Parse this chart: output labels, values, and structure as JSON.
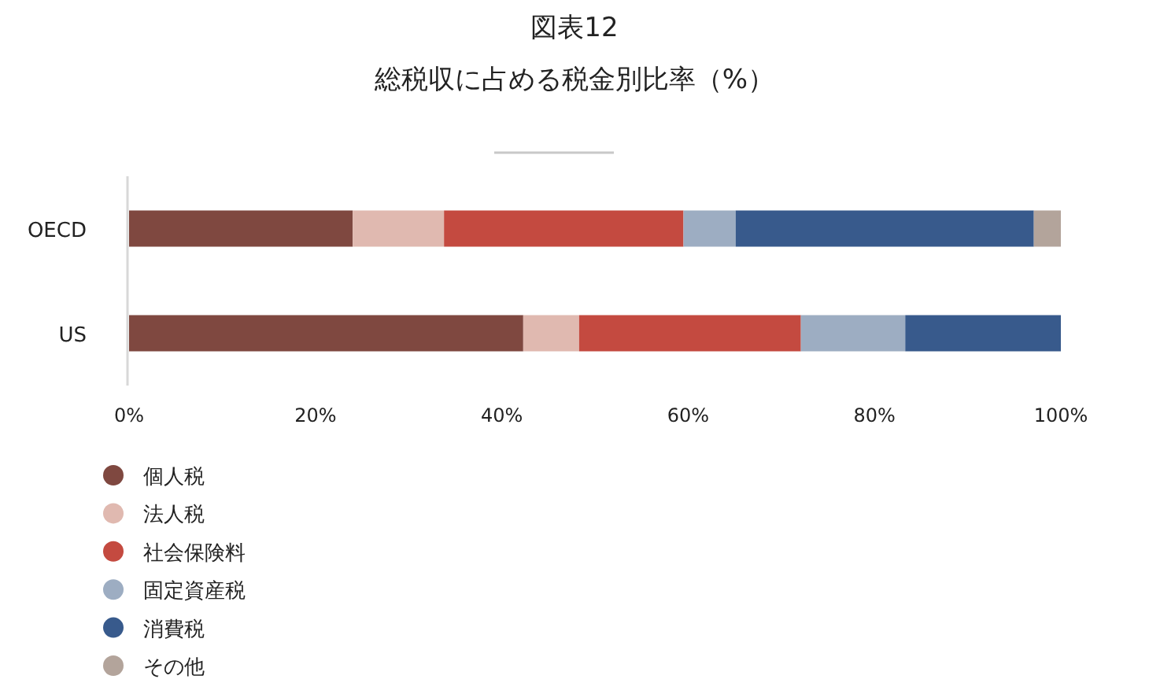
{
  "chart_data": {
    "type": "bar",
    "title": "図表12",
    "subtitle": "総税収に占める税金別比率（%）",
    "orientation": "horizontal",
    "stacked": true,
    "categories": [
      "OECD",
      "US"
    ],
    "series": [
      {
        "name": "個人税",
        "color": "#7f4840",
        "values": [
          24.0,
          42.3
        ]
      },
      {
        "name": "法人税",
        "color": "#e0b9b0",
        "values": [
          9.8,
          6.0
        ]
      },
      {
        "name": "社会保険料",
        "color": "#c44a40",
        "values": [
          25.7,
          23.8
        ]
      },
      {
        "name": "固定資産税",
        "color": "#9dadc2",
        "values": [
          5.6,
          11.2
        ]
      },
      {
        "name": "消費税",
        "color": "#385a8c",
        "values": [
          32.0,
          16.7
        ]
      },
      {
        "name": "その他",
        "color": "#b3a49b",
        "values": [
          2.9,
          0
        ]
      }
    ],
    "xlim": [
      0,
      100
    ],
    "xticks": [
      {
        "value": 0,
        "label": "0%"
      },
      {
        "value": 20,
        "label": "20%"
      },
      {
        "value": 40,
        "label": "40%"
      },
      {
        "value": 60,
        "label": "60%"
      },
      {
        "value": 80,
        "label": "80%"
      },
      {
        "value": 100,
        "label": "100%"
      }
    ],
    "grid": false,
    "legend": "bottom left"
  }
}
